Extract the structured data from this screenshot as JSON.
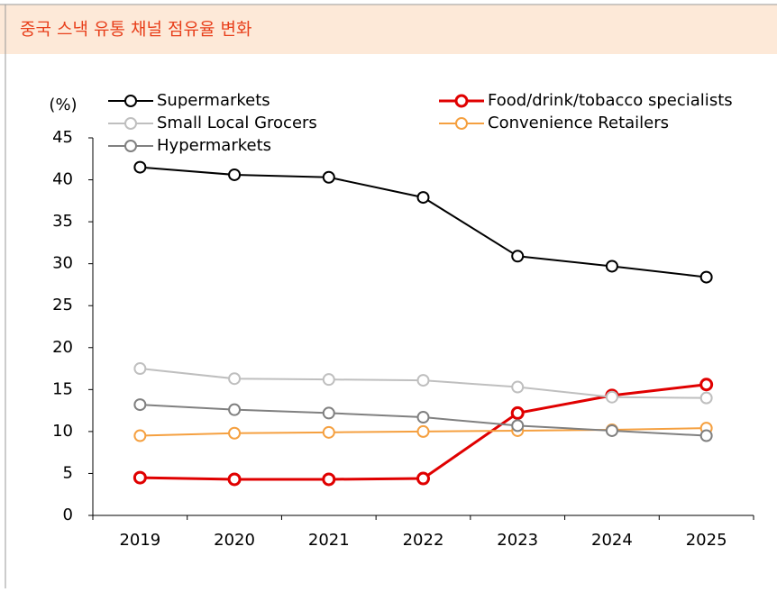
{
  "chart_data": {
    "type": "line",
    "title": "중국 스낵 유통 채널 점유율 변화",
    "ylabel": "(%)",
    "categories": [
      "2019",
      "2020",
      "2021",
      "2022",
      "2023",
      "2024",
      "2025"
    ],
    "series": [
      {
        "name": "Supermarkets",
        "color": "#000000",
        "values": [
          41.5,
          40.6,
          40.3,
          37.9,
          30.9,
          29.7,
          28.4
        ]
      },
      {
        "name": "Food/drink/tobacco specialists",
        "color": "#e00000",
        "values": [
          4.5,
          4.3,
          4.3,
          4.4,
          12.2,
          14.3,
          15.6
        ]
      },
      {
        "name": "Small Local Grocers",
        "color": "#bfbfbf",
        "values": [
          17.5,
          16.3,
          16.2,
          16.1,
          15.3,
          14.1,
          14.0
        ]
      },
      {
        "name": "Convenience Retailers",
        "color": "#f5a040",
        "values": [
          9.5,
          9.8,
          9.9,
          10.0,
          10.1,
          10.2,
          10.4
        ]
      },
      {
        "name": "Hypermarkets",
        "color": "#808080",
        "values": [
          13.2,
          12.6,
          12.2,
          11.7,
          10.7,
          10.1,
          9.5
        ]
      }
    ],
    "ylim": [
      0,
      45
    ],
    "yticks": [
      0,
      5,
      10,
      15,
      20,
      25,
      30,
      35,
      40,
      45
    ],
    "grid": false,
    "legend": "top"
  }
}
